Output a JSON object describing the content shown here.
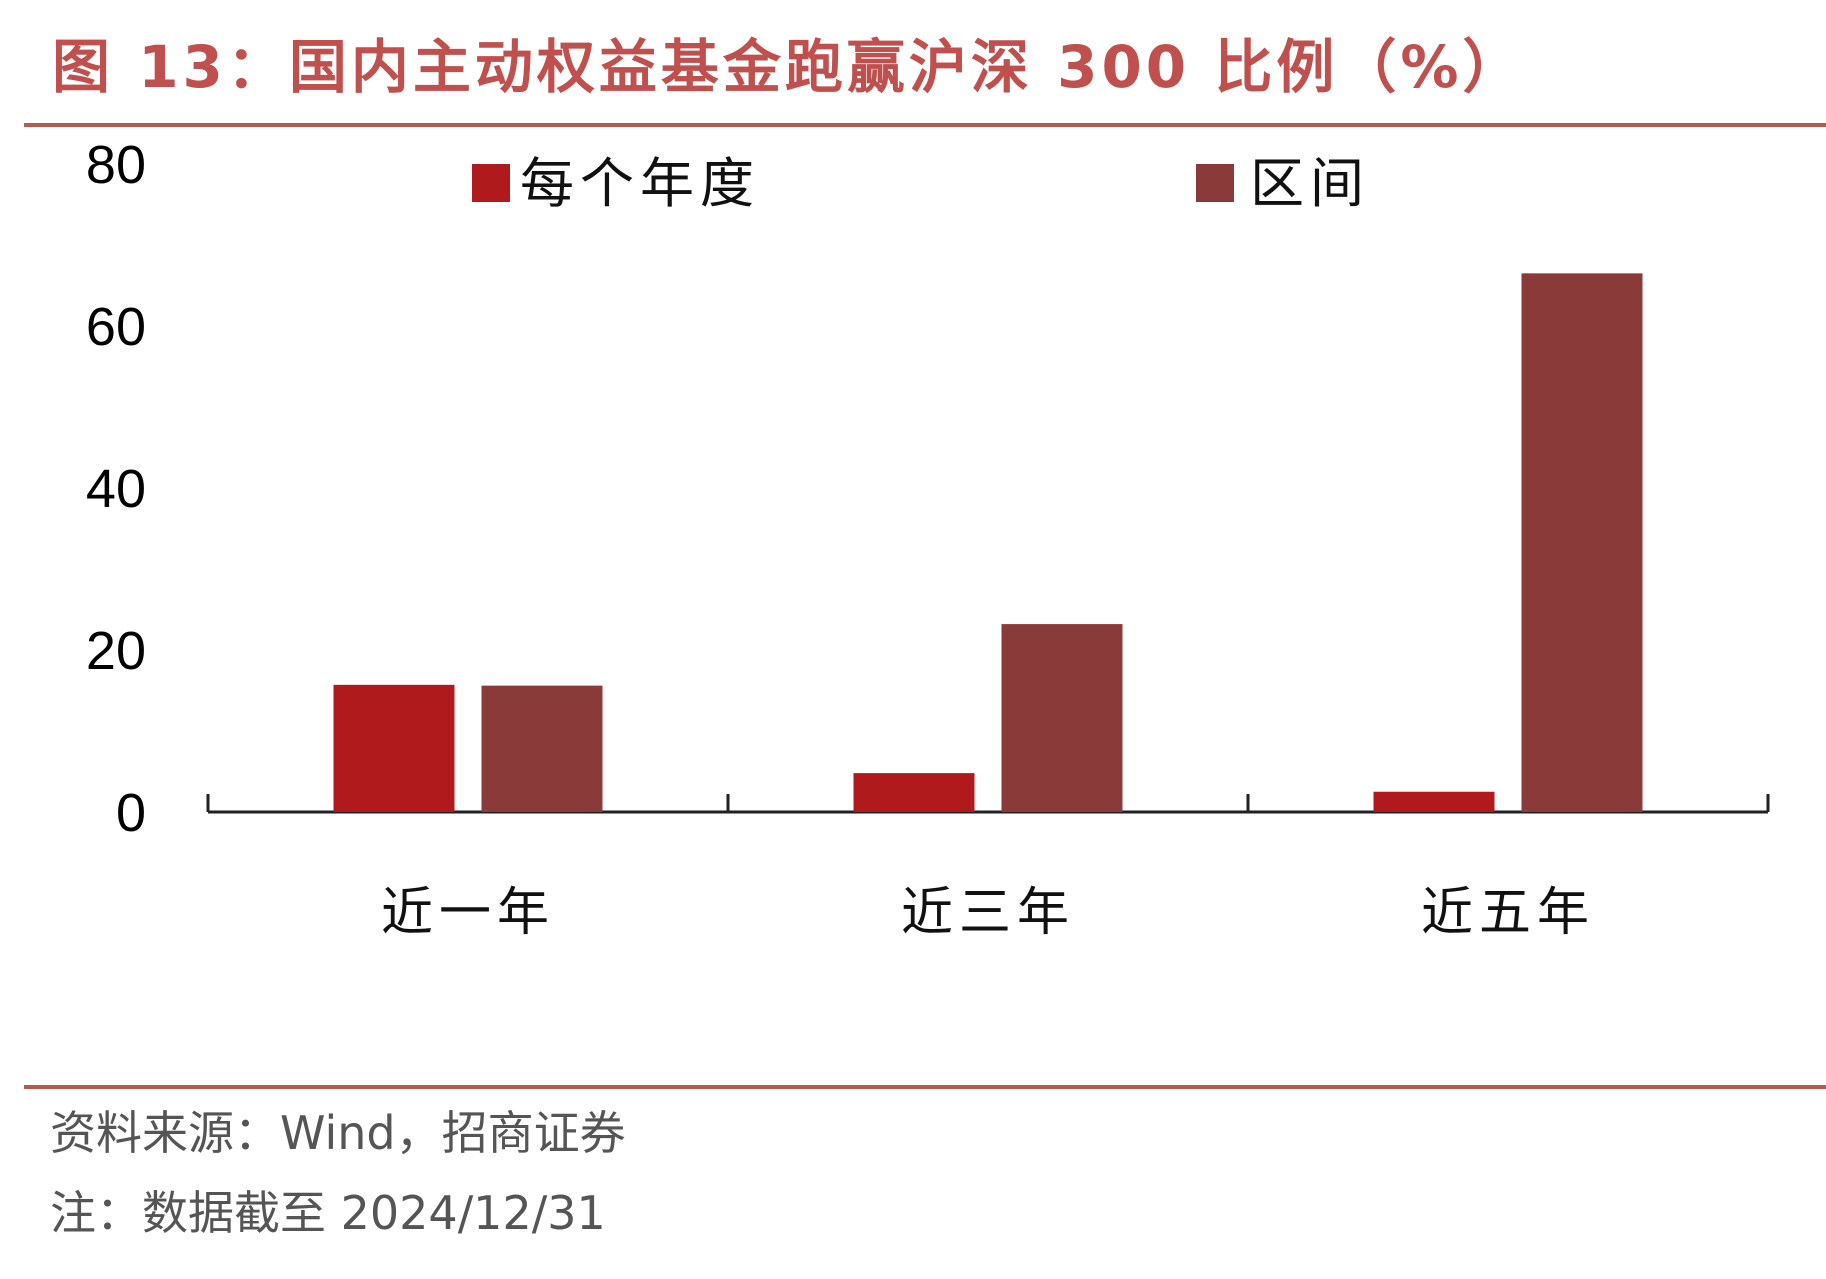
{
  "title": "图 13：国内主动权益基金跑赢沪深 300 比例（%）",
  "source": "资料来源：Wind，招商证券",
  "note": "注：数据截至 2024/12/31",
  "colors": {
    "series1": "#b01a1c",
    "series2": "#8b3a3a",
    "title": "#c0504d"
  },
  "chart_data": {
    "type": "bar",
    "categories": [
      "近一年",
      "近三年",
      "近五年"
    ],
    "series": [
      {
        "name": "每个年度",
        "values": [
          15.7,
          4.8,
          2.5
        ]
      },
      {
        "name": "区间",
        "values": [
          15.6,
          23.2,
          66.5
        ]
      }
    ],
    "ylim": [
      0,
      80
    ],
    "yticks": [
      0,
      20,
      40,
      60,
      80
    ],
    "legend_position": "top",
    "grid": false
  }
}
